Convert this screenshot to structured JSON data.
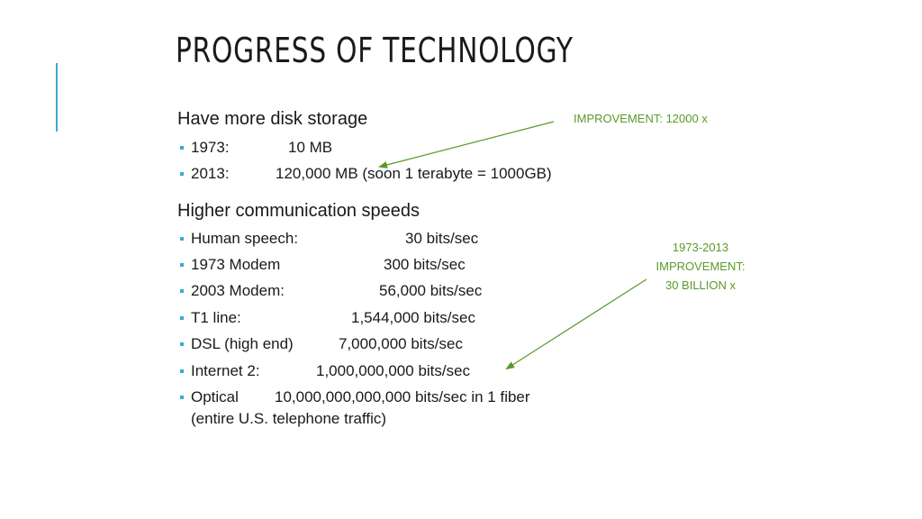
{
  "slide": {
    "title": "PROGRESS OF TECHNOLOGY"
  },
  "disk": {
    "heading": "Have more disk storage",
    "items": [
      {
        "label": "1973:",
        "value": "10 MB"
      },
      {
        "label": "2013:",
        "value": "120,000 MB   (soon 1 terabyte = 1000GB)"
      }
    ]
  },
  "comm": {
    "heading": "Higher communication speeds",
    "items": [
      {
        "label": "Human speech:",
        "value": "30 bits/sec"
      },
      {
        "label": "1973 Modem",
        "value": "300 bits/sec"
      },
      {
        "label": "2003 Modem:",
        "value": "56,000 bits/sec"
      },
      {
        "label": "T1 line:",
        "value": "1,544,000 bits/sec"
      },
      {
        "label": "DSL (high end)",
        "value": "7,000,000 bits/sec"
      },
      {
        "label": "Internet 2:",
        "value": "1,000,000,000 bits/sec"
      },
      {
        "label": "Optical",
        "value": "10,000,000,000,000 bits/sec in 1 fiber"
      }
    ],
    "continuation": "(entire U.S. telephone traffic)"
  },
  "callouts": {
    "disk": "IMPROVEMENT: 12000 x",
    "comm_line1": "1973-2013",
    "comm_line2": "IMPROVEMENT:",
    "comm_line3": "30 BILLION x"
  },
  "colors": {
    "accent": "#3fa7d6",
    "callout": "#5a9a2a",
    "text": "#1a1a1a"
  }
}
